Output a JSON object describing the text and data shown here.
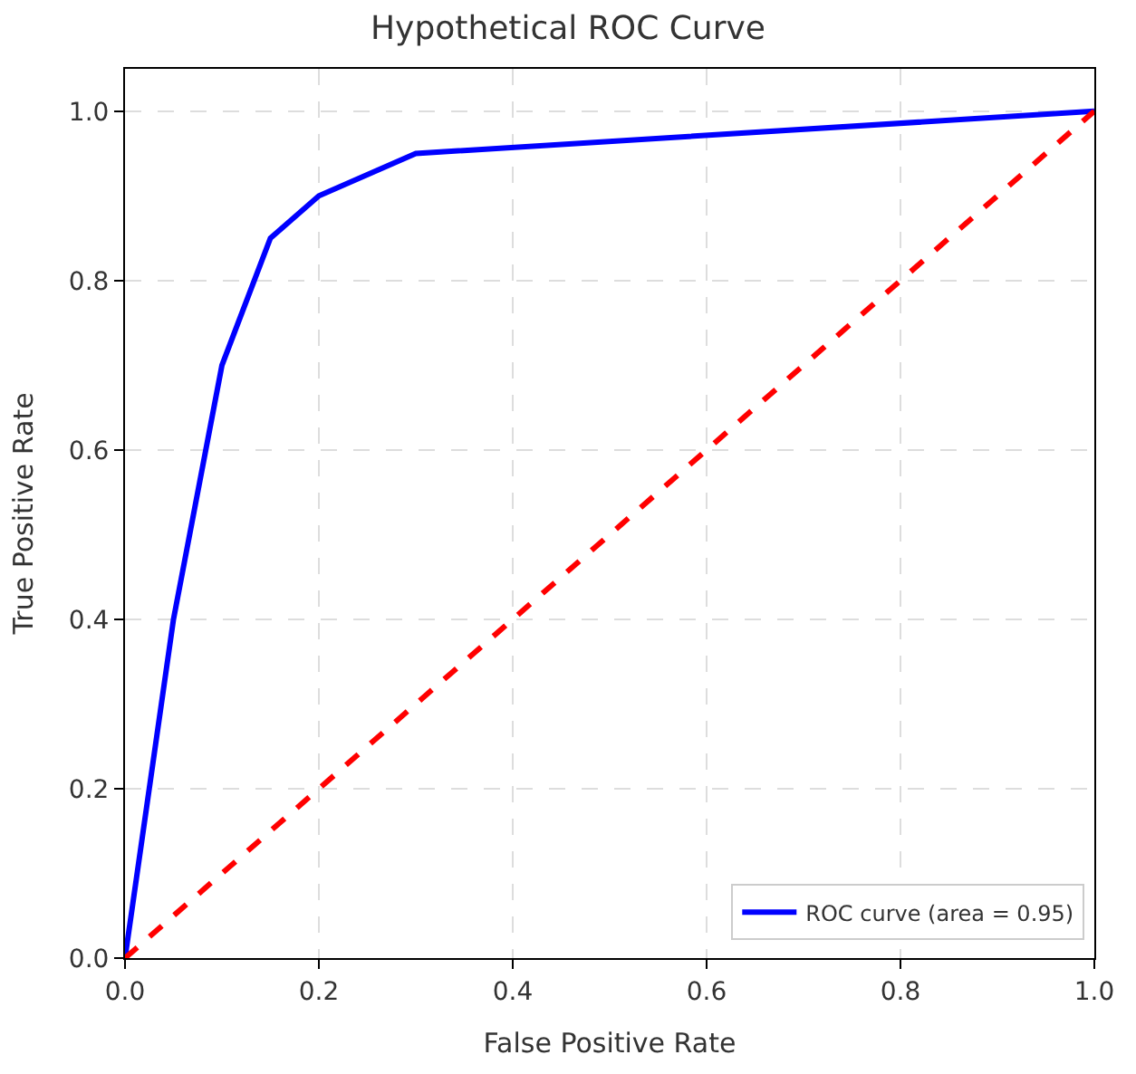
{
  "chart_data": {
    "type": "line",
    "title": "Hypothetical ROC Curve",
    "xlabel": "False Positive Rate",
    "ylabel": "True Positive Rate",
    "series": [
      {
        "name": "ROC curve (area = 0.95)",
        "color": "#0000ff",
        "x": [
          0,
          0.05,
          0.1,
          0.15,
          0.2,
          0.3,
          1.0
        ],
        "values": [
          0,
          0.4,
          0.7,
          0.85,
          0.9,
          0.95,
          1.0
        ],
        "line_style": "solid"
      },
      {
        "color": "#ff0000",
        "x": [
          0,
          1
        ],
        "values": [
          0,
          1
        ],
        "line_style": "dashed"
      }
    ],
    "xlim": [
      0,
      1
    ],
    "ylim": [
      0,
      1.05
    ],
    "xticks": [
      {
        "value": 0,
        "label": "0.0"
      },
      0.2,
      0.4,
      0.6,
      0.8,
      {
        "value": 1,
        "label": "1.0"
      }
    ],
    "yticks": [
      {
        "value": 0,
        "label": "0.0"
      },
      0.2,
      0.4,
      0.6,
      0.8,
      {
        "value": 1,
        "label": "1.0"
      }
    ],
    "grid": true,
    "legend": "bottom right",
    "marker": "none"
  }
}
